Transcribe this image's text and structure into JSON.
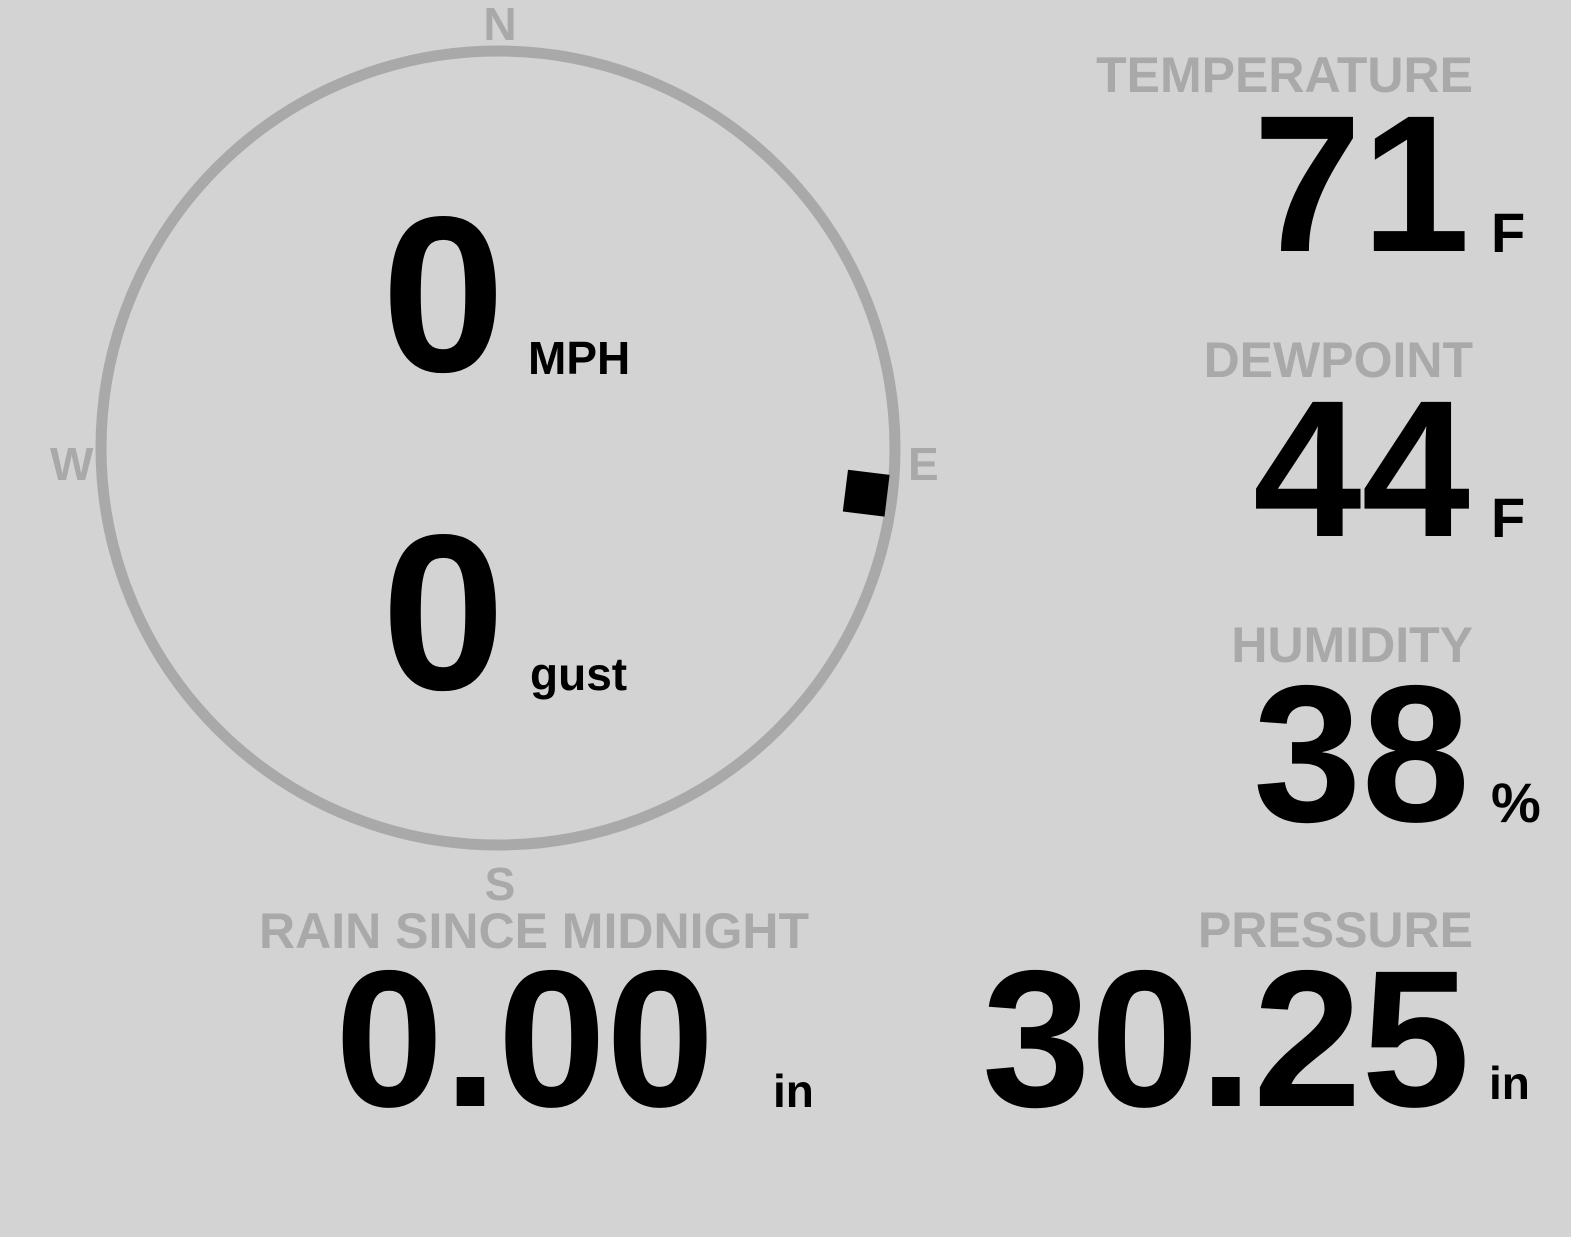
{
  "colors": {
    "background": "#d3d3d3",
    "label": "#a9a9a9",
    "value": "#000000",
    "compass_ring": "#a9a9a9",
    "wind_marker": "#000000"
  },
  "compass": {
    "north": "N",
    "east": "E",
    "south": "S",
    "west": "W",
    "wind_direction_deg": 97
  },
  "wind": {
    "speed": "0",
    "speed_unit": "MPH",
    "gust": "0",
    "gust_unit": "gust"
  },
  "temperature": {
    "label": "TEMPERATURE",
    "value": "71",
    "unit": "F"
  },
  "dewpoint": {
    "label": "DEWPOINT",
    "value": "44",
    "unit": "F"
  },
  "humidity": {
    "label": "HUMIDITY",
    "value": "38",
    "unit": "%"
  },
  "pressure": {
    "label": "PRESSURE",
    "value": "30.25",
    "unit": "in"
  },
  "rain": {
    "label": "RAIN SINCE MIDNIGHT",
    "value": "0.00",
    "unit": "in"
  }
}
